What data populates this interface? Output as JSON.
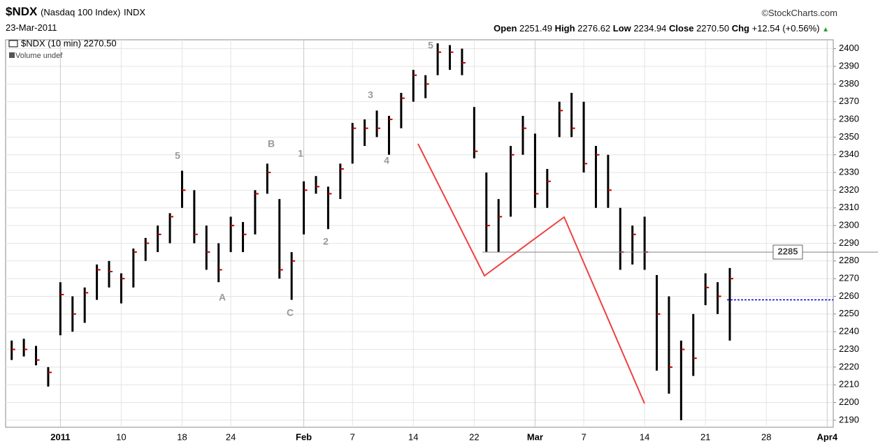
{
  "header": {
    "symbol": "$NDX",
    "name": "(Nasdaq 100 Index)",
    "exchange": "INDX",
    "date": "23-Mar-2011",
    "copyright": "©StockCharts.com",
    "open_label": "Open",
    "open": "2251.49",
    "high_label": "High",
    "high": "2276.62",
    "low_label": "Low",
    "low": "2234.94",
    "close_label": "Close",
    "close": "2270.50",
    "chg_label": "Chg",
    "chg": "+12.54 (+0.56%)"
  },
  "chart_data": {
    "type": "hlc",
    "legend": [
      "$NDX (10 min) 2270.50",
      "Volume undef"
    ],
    "categories": [
      null,
      null,
      null,
      null,
      "2011",
      null,
      null,
      null,
      null,
      "10",
      null,
      null,
      null,
      null,
      "18",
      null,
      null,
      null,
      "24",
      null,
      null,
      null,
      null,
      null,
      "Feb",
      null,
      null,
      null,
      "7",
      null,
      null,
      null,
      null,
      "14",
      null,
      null,
      null,
      null,
      "22",
      null,
      null,
      null,
      null,
      "Mar",
      null,
      null,
      null,
      "7",
      null,
      null,
      null,
      null,
      "14",
      null,
      null,
      null,
      null,
      "21",
      null,
      null,
      null,
      null,
      "28",
      null,
      null,
      null,
      null,
      "Apr4"
    ],
    "high": [
      2235,
      2236,
      2232,
      2220,
      2268,
      2260,
      2265,
      2278,
      2280,
      2273,
      2287,
      2293,
      2300,
      2307,
      2331,
      2320,
      2300,
      2290,
      2305,
      2302,
      2320,
      2335,
      2315,
      2285,
      2325,
      2328,
      2322,
      2335,
      2358,
      2360,
      2365,
      2362,
      2375,
      2388,
      2385,
      2403,
      2402,
      2400,
      2367,
      2330,
      2315,
      2345,
      2362,
      2352,
      2332,
      2370,
      2375,
      2370,
      2345,
      2340,
      2310,
      2300,
      2305,
      2272,
      2260,
      2235,
      2250,
      2273,
      2268,
      2276,
      null,
      null,
      null,
      null,
      null,
      null,
      null,
      null
    ],
    "low": [
      2224,
      2226,
      2221,
      2209,
      2238,
      2240,
      2245,
      2258,
      2265,
      2256,
      2265,
      2280,
      2285,
      2290,
      2310,
      2290,
      2275,
      2268,
      2285,
      2285,
      2295,
      2318,
      2270,
      2258,
      2295,
      2318,
      2298,
      2315,
      2335,
      2345,
      2350,
      2340,
      2355,
      2370,
      2372,
      2385,
      2388,
      2385,
      2338,
      2285,
      2285,
      2305,
      2340,
      2310,
      2310,
      2350,
      2350,
      2330,
      2310,
      2310,
      2275,
      2278,
      2275,
      2218,
      2205,
      2190,
      2215,
      2255,
      2250,
      2235,
      null,
      null,
      null,
      null,
      null,
      null,
      null,
      null
    ],
    "close": [
      2230,
      2230,
      2224,
      2217,
      2261,
      2250,
      2262,
      2275,
      2274,
      2270,
      2285,
      2290,
      2295,
      2305,
      2320,
      2295,
      2285,
      2275,
      2300,
      2295,
      2318,
      2330,
      2275,
      2280,
      2320,
      2322,
      2318,
      2332,
      2355,
      2355,
      2355,
      2360,
      2372,
      2385,
      2380,
      2398,
      2398,
      2392,
      2342,
      2300,
      2305,
      2340,
      2355,
      2318,
      2325,
      2365,
      2355,
      2335,
      2340,
      2320,
      2285,
      2295,
      2285,
      2250,
      2220,
      2230,
      2225,
      2265,
      2260,
      2270,
      null,
      null,
      null,
      null,
      null,
      null,
      null,
      null
    ],
    "color": "#000000",
    "ylim": [
      2186,
      2405
    ],
    "yticks": [
      2190,
      2200,
      2210,
      2220,
      2230,
      2240,
      2250,
      2260,
      2270,
      2280,
      2290,
      2300,
      2310,
      2320,
      2330,
      2340,
      2350,
      2360,
      2370,
      2380,
      2390,
      2400
    ],
    "grid": true,
    "hline": {
      "value": 2285,
      "color": "#808080"
    },
    "dotted_line": {
      "value": 2258,
      "color": "#0000dd"
    },
    "annotations": [
      "5",
      "A",
      "B",
      "C",
      "1",
      "2",
      "3",
      "4",
      "5"
    ]
  }
}
